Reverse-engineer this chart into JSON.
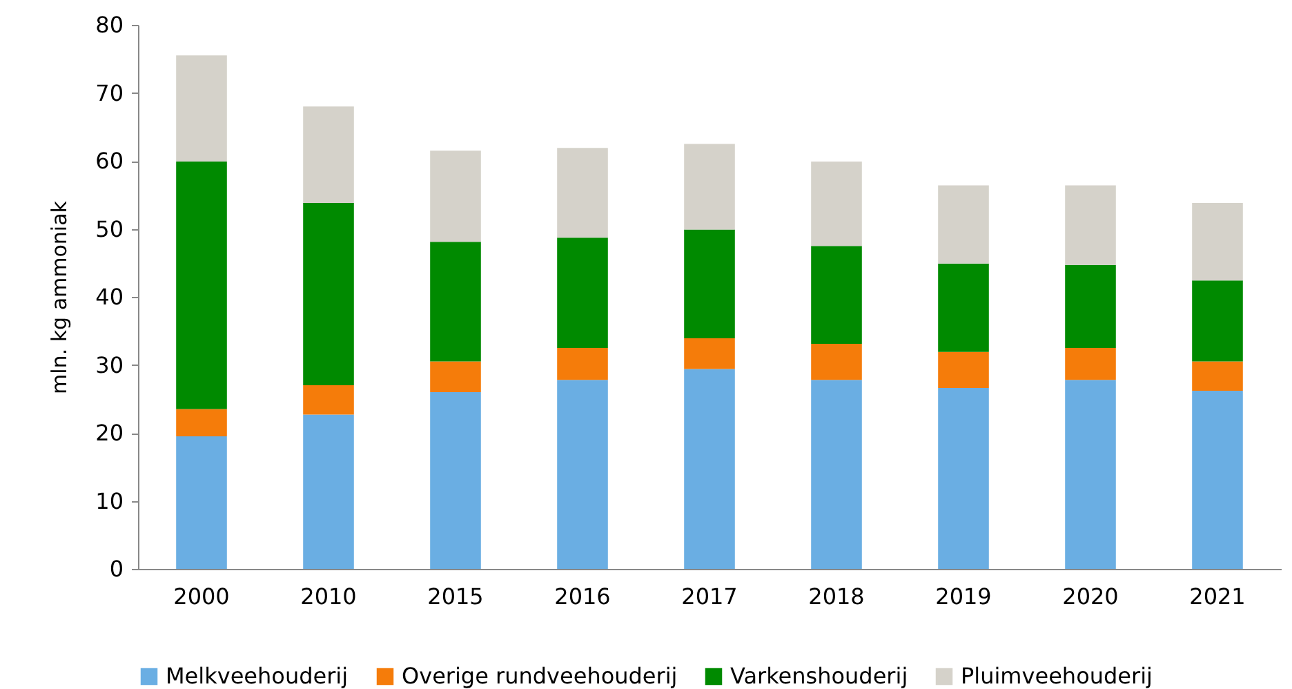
{
  "chart_data": {
    "type": "bar",
    "stacked": true,
    "ylabel": "mln. kg ammoniak",
    "categories": [
      "2000",
      "2010",
      "2015",
      "2016",
      "2017",
      "2018",
      "2019",
      "2020",
      "2021"
    ],
    "series": [
      {
        "name": "Melkveehouderij",
        "color": "#6aaee3",
        "values": [
          19.5,
          22.7,
          26.0,
          27.8,
          29.4,
          27.8,
          26.6,
          27.8,
          26.2
        ]
      },
      {
        "name": "Overige rundveehouderij",
        "color": "#f57c0a",
        "values": [
          4.0,
          4.3,
          4.5,
          4.7,
          4.5,
          5.3,
          5.3,
          4.7,
          4.3
        ]
      },
      {
        "name": "Varkenshouderij",
        "color": "#008a00",
        "values": [
          36.4,
          26.8,
          17.6,
          16.2,
          16.0,
          14.4,
          13.0,
          12.2,
          11.9
        ]
      },
      {
        "name": "Pluimveehouderij",
        "color": "#d5d2ca",
        "values": [
          15.6,
          14.2,
          13.4,
          13.2,
          12.6,
          12.4,
          11.5,
          11.7,
          11.4
        ]
      }
    ],
    "ylim": [
      0,
      80
    ],
    "yticks": [
      0,
      10,
      20,
      30,
      40,
      50,
      60,
      70,
      80
    ],
    "grid": false,
    "legend": "bottom"
  }
}
